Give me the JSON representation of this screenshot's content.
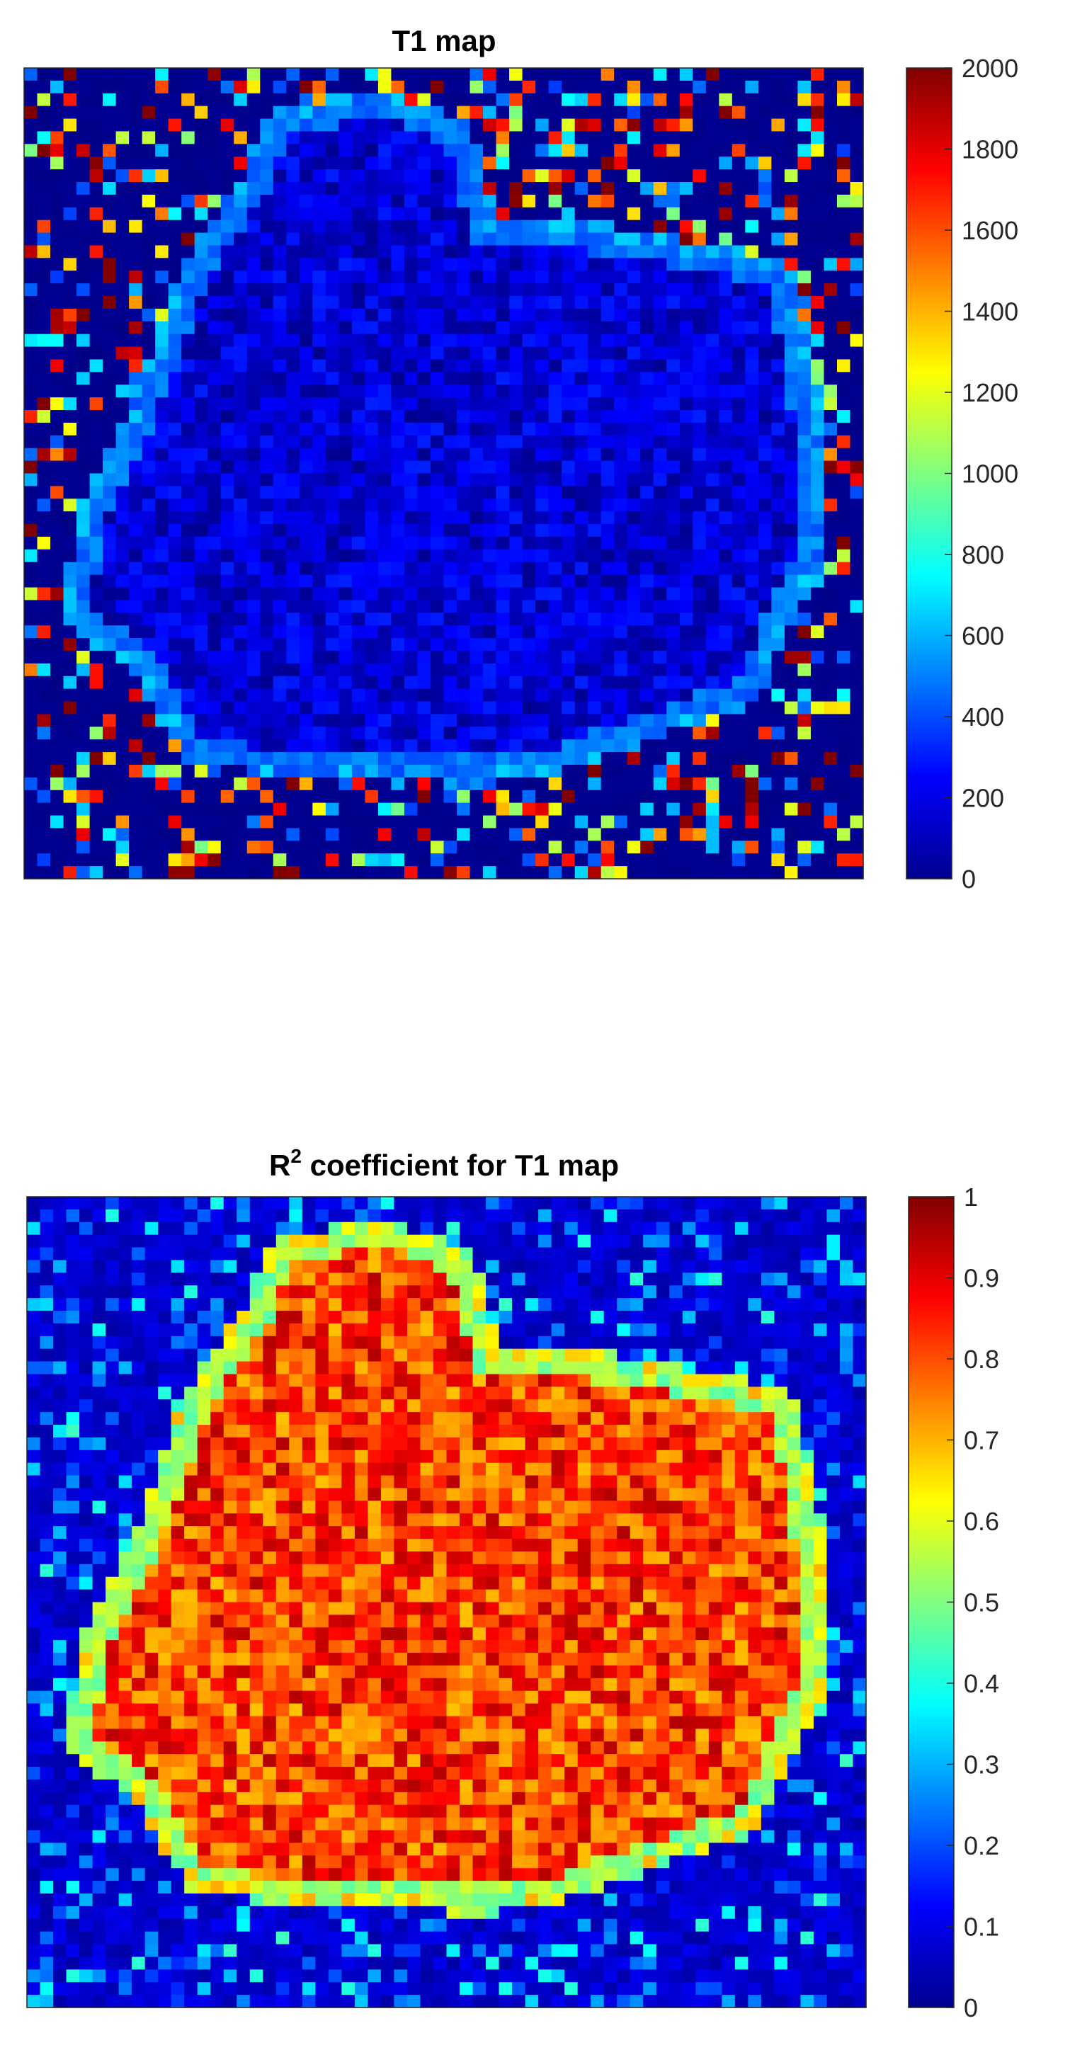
{
  "chart_data": [
    {
      "type": "heatmap",
      "title": "T1 map",
      "colormap": "jet",
      "clim": [
        0,
        2000
      ],
      "colorbar_ticks": [
        0,
        200,
        400,
        600,
        800,
        1000,
        1200,
        1400,
        1600,
        1800,
        2000
      ],
      "colorbar_tick_labels": [
        "0",
        "200",
        "400",
        "600",
        "800",
        "1000",
        "1200",
        "1400",
        "1600",
        "1800",
        "2000"
      ],
      "grid_size": [
        64,
        64
      ],
      "region": {
        "polygon": [
          [
            0.3,
            0.07
          ],
          [
            0.42,
            0.04
          ],
          [
            0.52,
            0.08
          ],
          [
            0.55,
            0.2
          ],
          [
            0.7,
            0.21
          ],
          [
            0.9,
            0.25
          ],
          [
            0.93,
            0.38
          ],
          [
            0.94,
            0.6
          ],
          [
            0.86,
            0.77
          ],
          [
            0.62,
            0.86
          ],
          [
            0.55,
            0.87
          ],
          [
            0.3,
            0.86
          ],
          [
            0.2,
            0.84
          ],
          [
            0.14,
            0.73
          ],
          [
            0.06,
            0.68
          ],
          [
            0.08,
            0.55
          ],
          [
            0.16,
            0.38
          ],
          [
            0.2,
            0.25
          ],
          [
            0.27,
            0.15
          ]
        ],
        "inside_value": 180,
        "inside_variation": 150,
        "rim_value": 500,
        "background_base": 30,
        "background_speckle_values": [
          2000,
          1900,
          1600,
          1200,
          700,
          450
        ],
        "background_speckle_fraction": 0.3
      },
      "xaxis_visible": false,
      "yaxis_visible": false
    },
    {
      "type": "heatmap",
      "title": "R coefficient for T1 map",
      "title_main": "R",
      "title_superscript": "2",
      "title_rest": " coefficient for T1 map",
      "colormap": "jet",
      "clim": [
        0,
        1
      ],
      "colorbar_ticks": [
        0,
        0.1,
        0.2,
        0.3,
        0.4,
        0.5,
        0.6,
        0.7,
        0.8,
        0.9,
        1
      ],
      "colorbar_tick_labels": [
        "0",
        "0.1",
        "0.2",
        "0.3",
        "0.4",
        "0.5",
        "0.6",
        "0.7",
        "0.8",
        "0.9",
        "1"
      ],
      "grid_size": [
        64,
        64
      ],
      "region": {
        "polygon": [
          [
            0.3,
            0.07
          ],
          [
            0.42,
            0.04
          ],
          [
            0.52,
            0.08
          ],
          [
            0.55,
            0.2
          ],
          [
            0.7,
            0.21
          ],
          [
            0.9,
            0.25
          ],
          [
            0.93,
            0.38
          ],
          [
            0.94,
            0.6
          ],
          [
            0.86,
            0.77
          ],
          [
            0.62,
            0.86
          ],
          [
            0.55,
            0.87
          ],
          [
            0.3,
            0.86
          ],
          [
            0.2,
            0.84
          ],
          [
            0.14,
            0.73
          ],
          [
            0.06,
            0.68
          ],
          [
            0.08,
            0.55
          ],
          [
            0.16,
            0.38
          ],
          [
            0.2,
            0.25
          ],
          [
            0.27,
            0.15
          ]
        ],
        "inside_value": 0.86,
        "inside_variation": 0.14,
        "rim_value": 0.55,
        "background_base": 0.08,
        "background_speckle_values": [
          0.4,
          0.3,
          0.25,
          0.2
        ],
        "background_speckle_fraction": 0.22
      },
      "xaxis_visible": false,
      "yaxis_visible": false
    }
  ]
}
